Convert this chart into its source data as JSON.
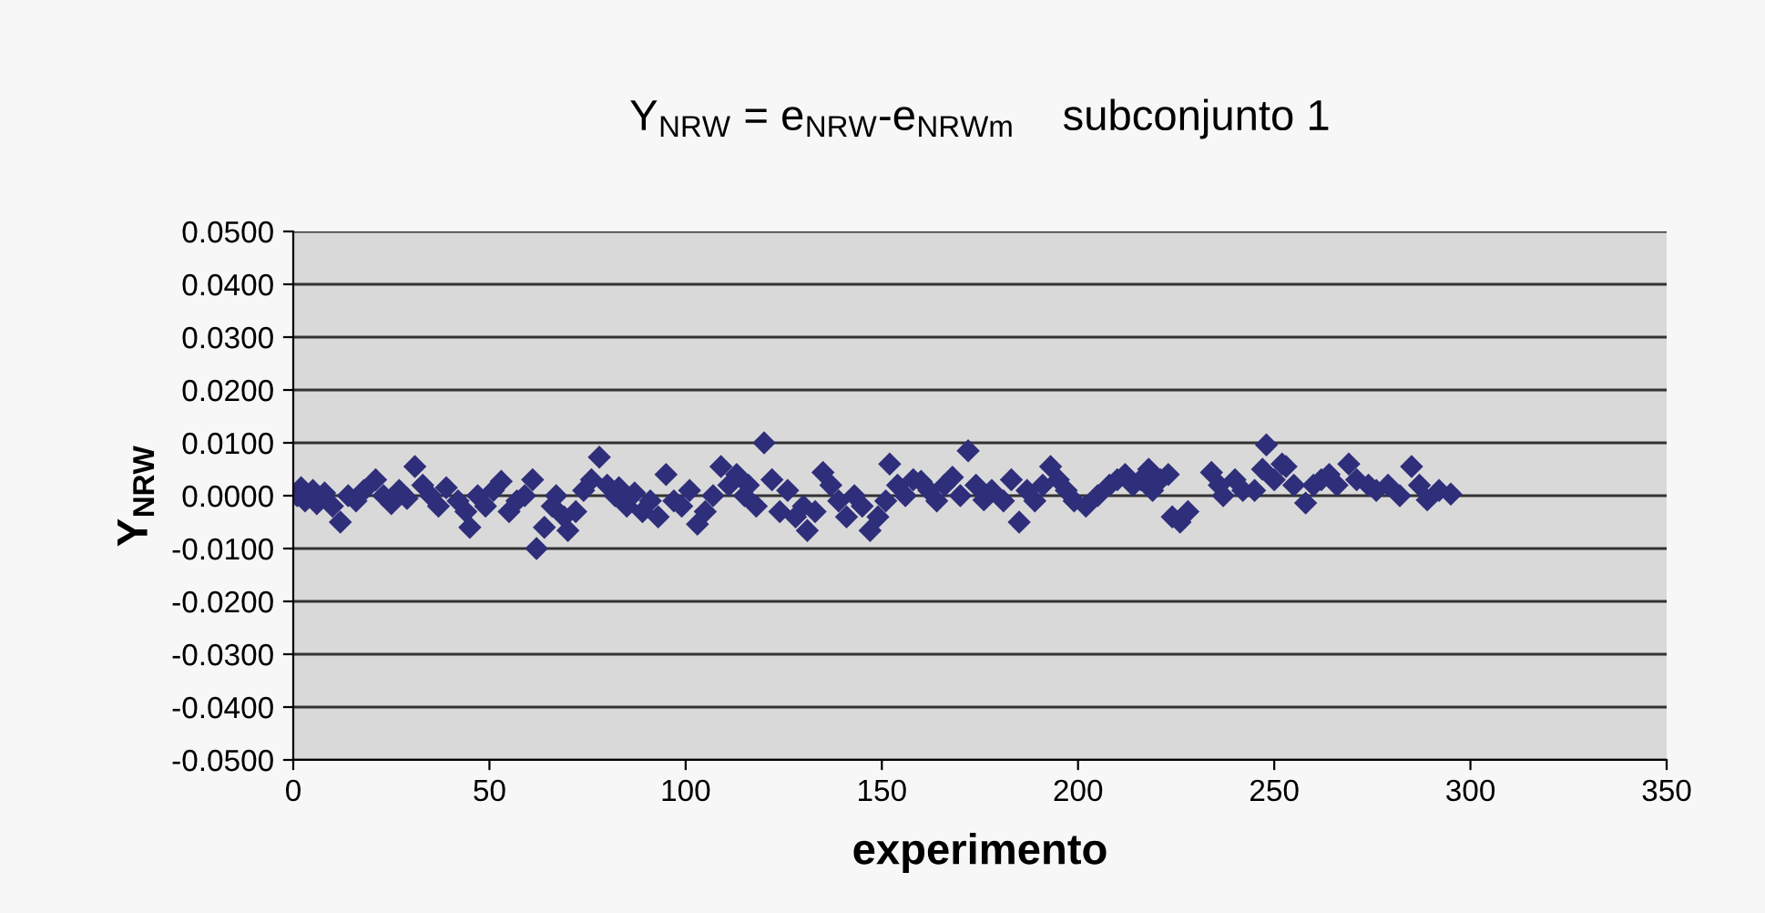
{
  "chart_data": {
    "type": "scatter",
    "title": "Y$_{NRW}$ = e$_{NRW}$-e$_{NRWm}$    subconjunto 1",
    "xlabel": "experimento",
    "ylabel": "Y$_{NRW}$",
    "x": [
      1,
      2,
      3,
      5,
      6,
      8,
      10,
      12,
      14,
      16,
      18,
      21,
      23,
      25,
      27,
      29,
      31,
      33,
      35,
      37,
      39,
      42,
      44,
      45,
      47,
      49,
      51,
      53,
      55,
      57,
      59,
      61,
      62,
      64,
      66,
      67,
      69,
      70,
      72,
      74,
      76,
      78,
      80,
      82,
      83,
      85,
      87,
      89,
      91,
      93,
      95,
      97,
      99,
      101,
      103,
      105,
      107,
      109,
      111,
      113,
      115,
      116,
      118,
      120,
      122,
      124,
      126,
      128,
      130,
      131,
      133,
      135,
      137,
      139,
      141,
      143,
      145,
      147,
      149,
      151,
      152,
      154,
      156,
      158,
      160,
      162,
      164,
      166,
      168,
      170,
      172,
      174,
      176,
      178,
      181,
      183,
      185,
      187,
      189,
      191,
      193,
      195,
      197,
      199,
      202,
      205,
      208,
      210,
      212,
      214,
      216,
      218,
      219,
      221,
      223,
      224,
      226,
      228,
      234,
      236,
      237,
      240,
      242,
      245,
      247,
      248,
      250,
      252,
      253,
      255,
      258,
      260,
      262,
      264,
      266,
      269,
      271,
      274,
      276,
      279,
      282,
      285,
      287,
      289,
      292,
      295
    ],
    "series": [
      {
        "color": "#2e2e7a",
        "values": [
          0.0,
          0.0015,
          -0.001,
          0.001,
          -0.0015,
          0.0005,
          -0.002,
          -0.005,
          0.0,
          -0.001,
          0.001,
          0.003,
          0.0,
          -0.0015,
          0.001,
          -0.0005,
          0.0055,
          0.002,
          0.0,
          -0.002,
          0.0015,
          -0.001,
          -0.003,
          -0.006,
          0.0,
          -0.002,
          0.001,
          0.0027,
          -0.003,
          -0.001,
          0.0,
          0.003,
          -0.01,
          -0.006,
          -0.002,
          0.0,
          -0.004,
          -0.0066,
          -0.003,
          0.001,
          0.003,
          0.0073,
          0.002,
          0.0,
          0.0015,
          -0.002,
          0.0005,
          -0.003,
          -0.001,
          -0.004,
          0.004,
          -0.001,
          -0.002,
          0.001,
          -0.0054,
          -0.003,
          0.0,
          0.0055,
          0.002,
          0.004,
          0.0,
          0.002,
          -0.002,
          0.01,
          0.003,
          -0.003,
          0.001,
          -0.004,
          -0.002,
          -0.0066,
          -0.003,
          0.0044,
          0.002,
          -0.001,
          -0.004,
          0.0,
          -0.002,
          -0.0066,
          -0.004,
          -0.001,
          0.006,
          0.002,
          0.0,
          0.003,
          0.0027,
          0.001,
          -0.001,
          0.002,
          0.0035,
          0.0,
          0.0085,
          0.002,
          -0.0008,
          0.001,
          -0.001,
          0.003,
          -0.005,
          0.001,
          -0.001,
          0.002,
          0.0055,
          0.003,
          0.001,
          -0.001,
          -0.002,
          0.0,
          0.002,
          0.003,
          0.004,
          0.002,
          0.003,
          0.005,
          0.001,
          0.003,
          0.004,
          -0.004,
          -0.005,
          -0.003,
          0.0044,
          0.002,
          0.0,
          0.003,
          0.001,
          0.001,
          0.005,
          0.0096,
          0.003,
          0.006,
          0.0055,
          0.002,
          -0.0014,
          0.002,
          0.003,
          0.004,
          0.002,
          0.006,
          0.003,
          0.002,
          0.001,
          0.002,
          0.0,
          0.0055,
          0.002,
          -0.0008,
          0.001,
          0.0003
        ]
      }
    ],
    "marker": "diamond",
    "grid": "y",
    "xlim": [
      0,
      350
    ],
    "xticks": [
      0,
      50,
      100,
      150,
      200,
      250,
      300,
      350
    ],
    "ylim": [
      -0.05,
      0.05
    ],
    "yticks": [
      {
        "value": -0.05,
        "label": "-0.0500"
      },
      {
        "value": -0.04,
        "label": "-0.0400"
      },
      {
        "value": -0.03,
        "label": "-0.0300"
      },
      {
        "value": -0.02,
        "label": "-0.0200"
      },
      {
        "value": -0.01,
        "label": "-0.0100"
      },
      {
        "value": 0,
        "label": "0.0000"
      },
      {
        "value": 0.01,
        "label": "0.0100"
      },
      {
        "value": 0.02,
        "label": "0.0200"
      },
      {
        "value": 0.03,
        "label": "0.0300"
      },
      {
        "value": 0.04,
        "label": "0.0400"
      },
      {
        "value": 0.05,
        "label": "0.0500"
      }
    ]
  }
}
